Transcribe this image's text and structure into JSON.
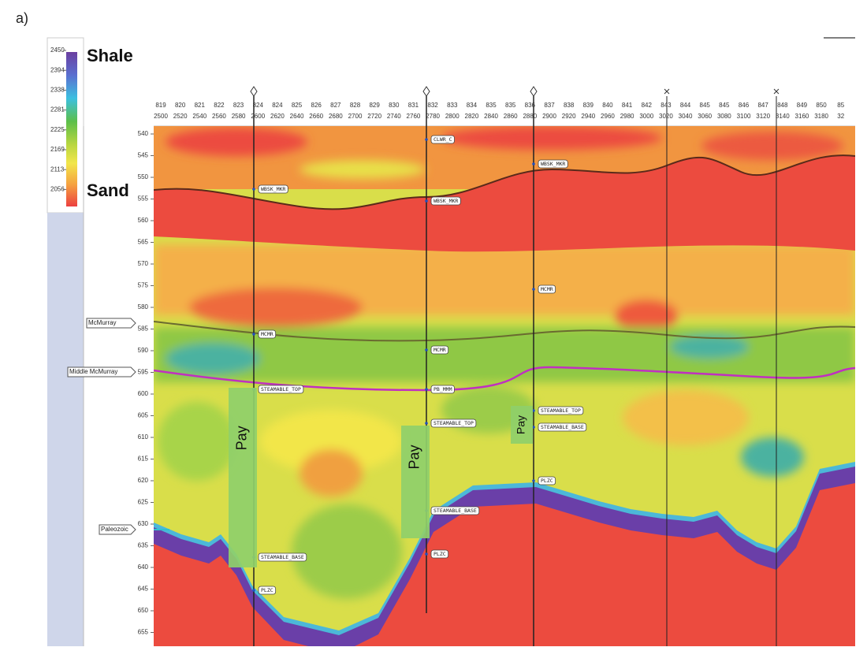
{
  "figure_label": "a)",
  "colorbar": {
    "ticks": [
      2450,
      2394,
      2338,
      2281,
      2225,
      2169,
      2113,
      2056
    ],
    "top_label": "Shale",
    "bottom_label": "Sand"
  },
  "section": {
    "trace_numbers": [
      "819",
      "820",
      "821",
      "822",
      "823",
      "824",
      "824",
      "825",
      "826",
      "827",
      "828",
      "829",
      "830",
      "831",
      "832",
      "833",
      "834",
      "835",
      "835",
      "836",
      "837",
      "838",
      "839",
      "840",
      "841",
      "842",
      "843",
      "844",
      "845",
      "845",
      "846",
      "847",
      "848",
      "849",
      "850",
      "85"
    ],
    "cdp_numbers": [
      "2500",
      "2520",
      "2540",
      "2560",
      "2580",
      "2600",
      "2620",
      "2640",
      "2660",
      "2680",
      "2700",
      "2720",
      "2740",
      "2760",
      "2780",
      "2800",
      "2820",
      "2840",
      "2860",
      "2880",
      "2900",
      "2920",
      "2940",
      "2960",
      "2980",
      "3000",
      "3020",
      "3040",
      "3060",
      "3080",
      "3100",
      "3120",
      "3140",
      "3160",
      "3180",
      "32"
    ],
    "depths": [
      540,
      545,
      550,
      555,
      560,
      565,
      570,
      575,
      580,
      585,
      590,
      595,
      600,
      605,
      610,
      615,
      620,
      625,
      630,
      635,
      640,
      645,
      650,
      655
    ]
  },
  "horizons": [
    {
      "label": "McMurray"
    },
    {
      "label": "Middle McMurray"
    },
    {
      "label": "Paleozoic"
    }
  ],
  "wells": [
    {
      "markers": [
        {
          "label": "WBSK_MKR"
        },
        {
          "label": "MCMR"
        },
        {
          "label": "STEAMABLE_TOP"
        },
        {
          "label": "STEAMABLE_BASE"
        },
        {
          "label": "PLZC"
        }
      ]
    },
    {
      "markers": [
        {
          "label": "CLWR_C"
        },
        {
          "label": "WBSK_MKR"
        },
        {
          "label": "MCMR"
        },
        {
          "label": "PB_MMM"
        },
        {
          "label": "STEAMABLE_TOP"
        },
        {
          "label": "STEAMABLE_BASE"
        },
        {
          "label": "PLZC"
        }
      ]
    },
    {
      "markers": [
        {
          "label": "WBSK_MKR"
        },
        {
          "label": "MCMR"
        },
        {
          "label": "STEAMABLE_TOP"
        },
        {
          "label": "STEAMABLE_BASE"
        },
        {
          "label": "PLZC"
        }
      ]
    }
  ],
  "pay_zones": [
    "Pay",
    "Pay",
    "Pay"
  ]
}
